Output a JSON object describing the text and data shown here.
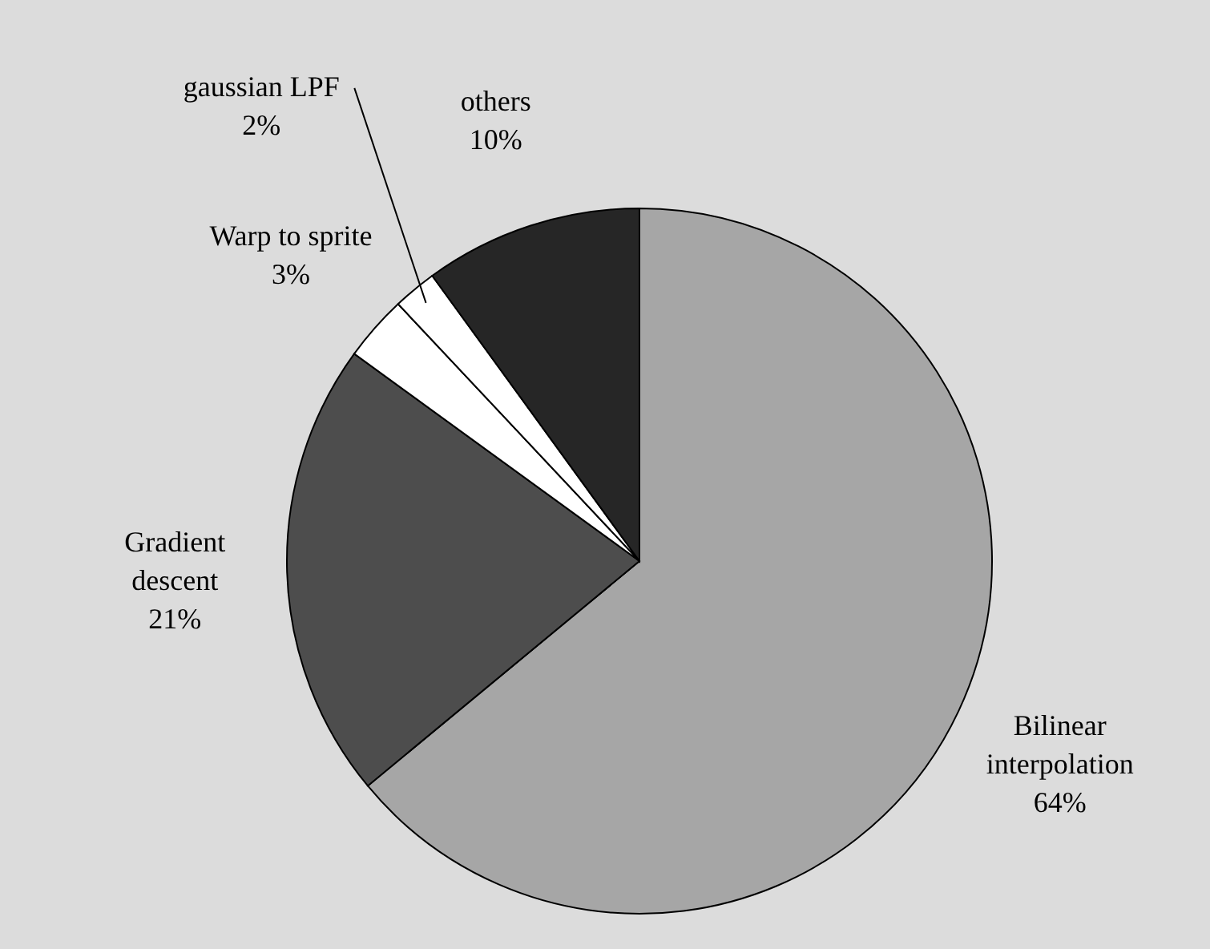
{
  "chart_data": {
    "type": "pie",
    "categories": [
      "Bilinear interpolation",
      "Gradient descent",
      "Warp to sprite",
      "gaussian LPF",
      "others"
    ],
    "values": [
      64,
      21,
      3,
      2,
      10
    ],
    "value_labels": [
      "64%",
      "21%",
      "3%",
      "2%",
      "10%"
    ],
    "colors": [
      "#a6a6a6",
      "#4d4d4d",
      "#ffffff",
      "#ffffff",
      "#262626"
    ]
  }
}
